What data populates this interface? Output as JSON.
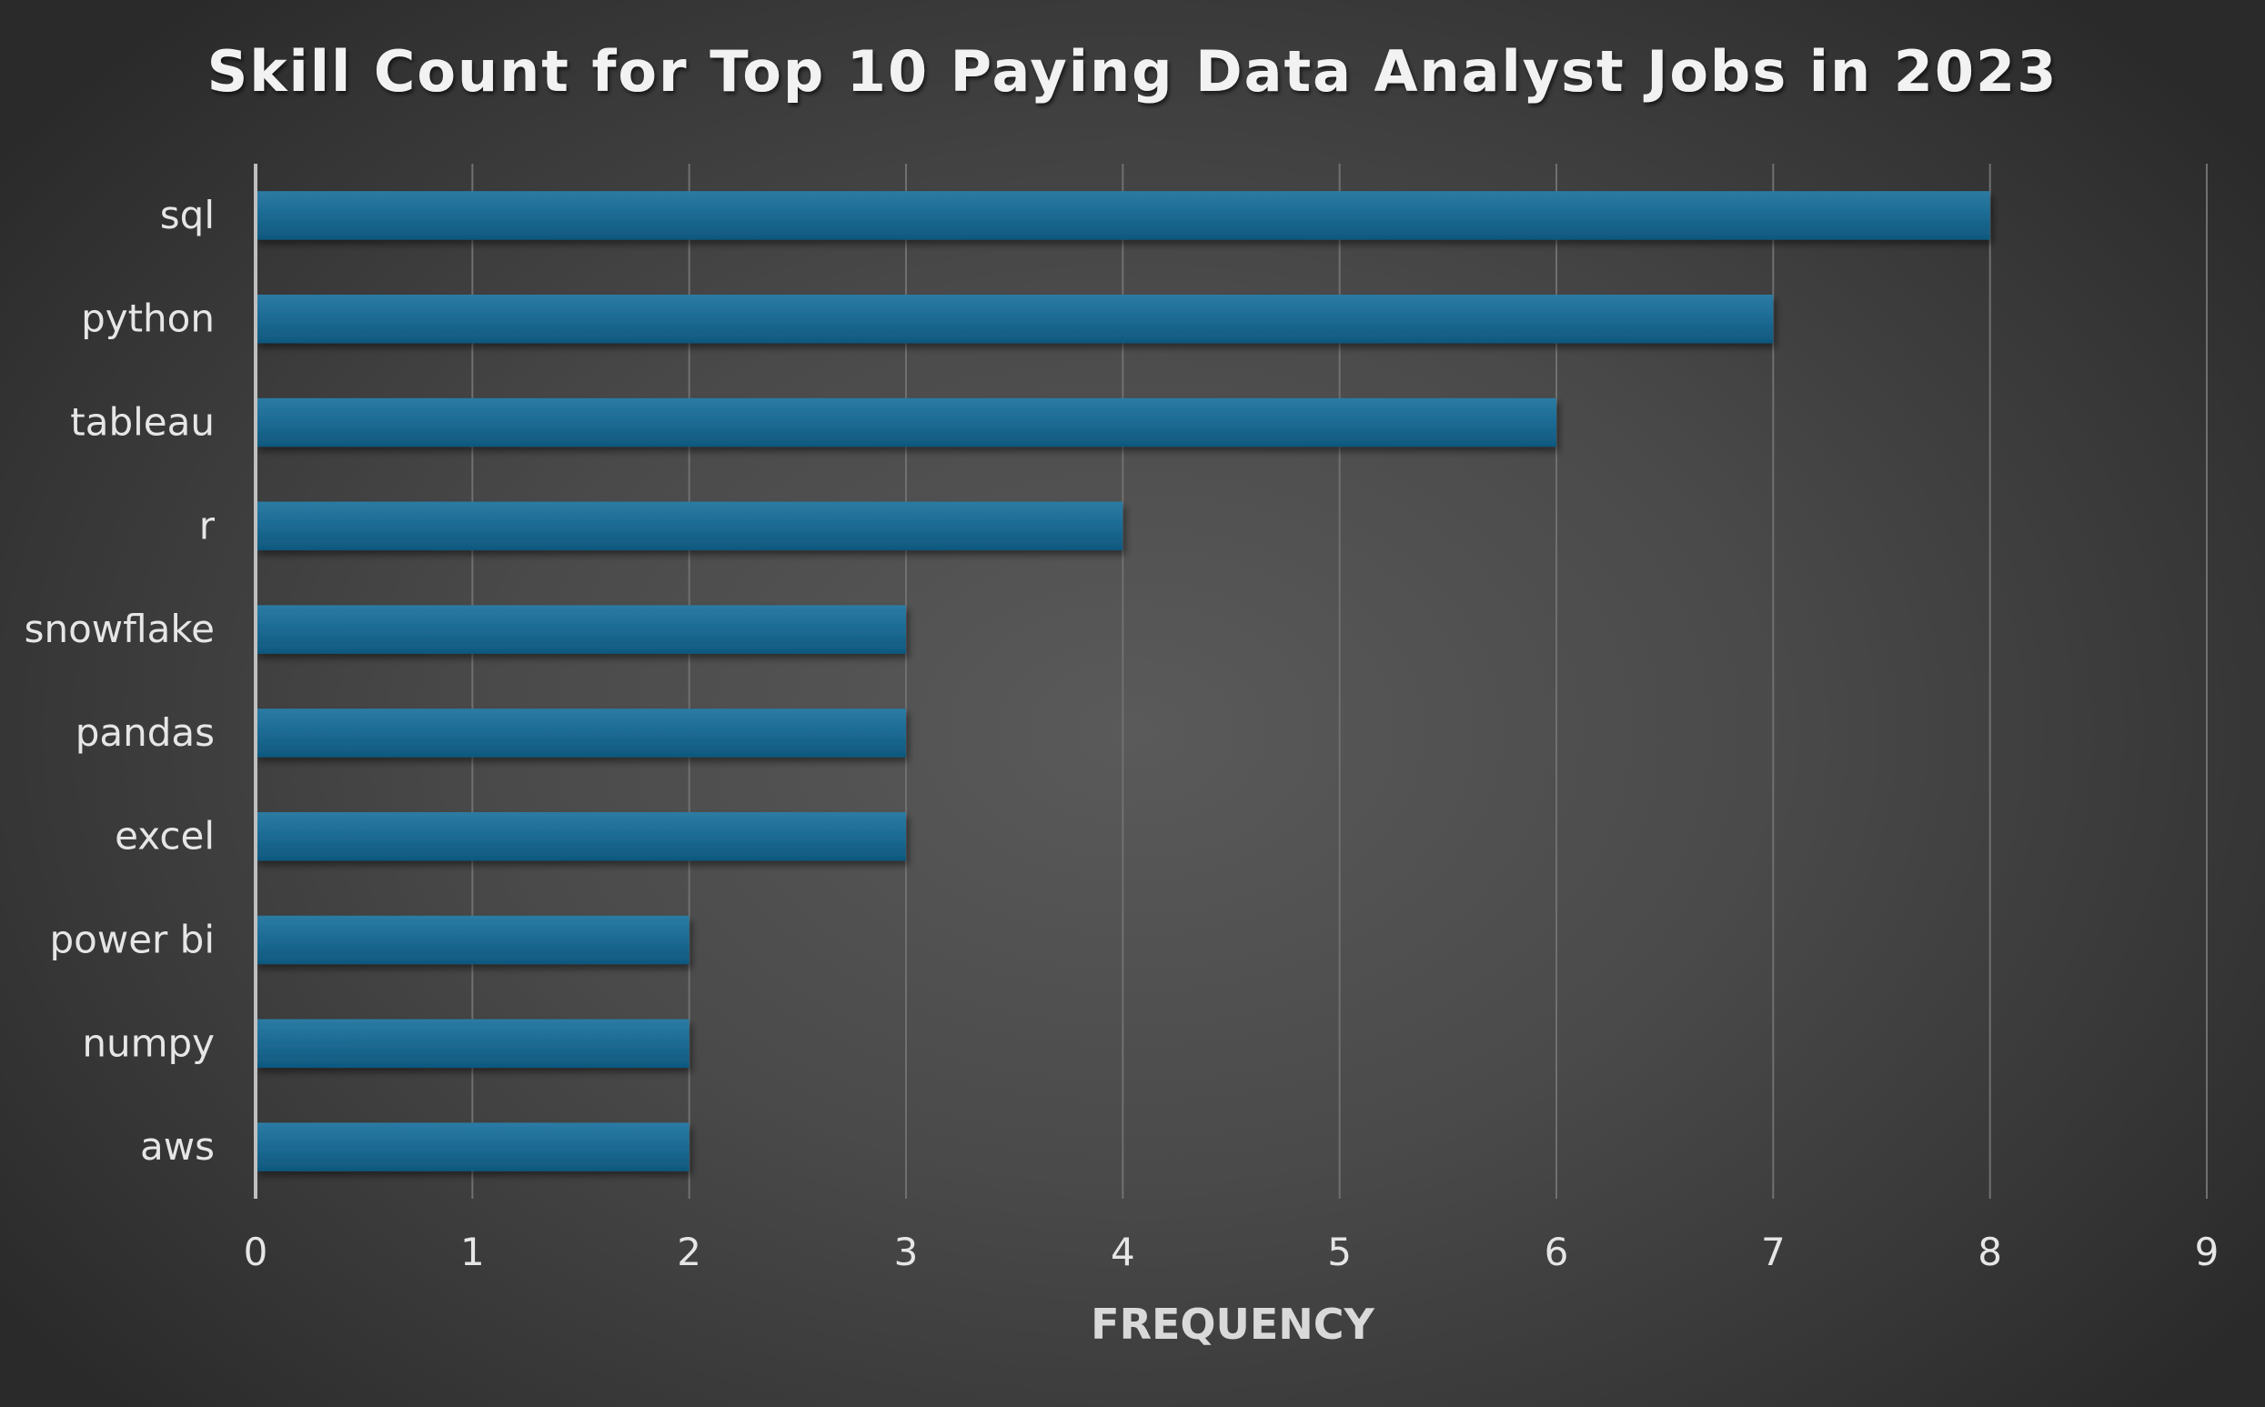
{
  "chart_data": {
    "type": "bar",
    "orientation": "horizontal",
    "title": "Skill Count for Top 10 Paying Data Analyst Jobs in 2023",
    "xlabel": "FREQUENCY",
    "ylabel": "",
    "categories": [
      "sql",
      "python",
      "tableau",
      "r",
      "snowflake",
      "pandas",
      "excel",
      "power bi",
      "numpy",
      "aws"
    ],
    "values": [
      8,
      7,
      6,
      4,
      3,
      3,
      3,
      2,
      2,
      2
    ],
    "xlim": [
      0,
      9
    ],
    "xticks": [
      "0",
      "1",
      "2",
      "3",
      "4",
      "5",
      "6",
      "7",
      "8",
      "9"
    ],
    "grid": "vertical",
    "legend": "none",
    "bar_color": "#1a6a93",
    "background_color": "#4a4a4a"
  }
}
